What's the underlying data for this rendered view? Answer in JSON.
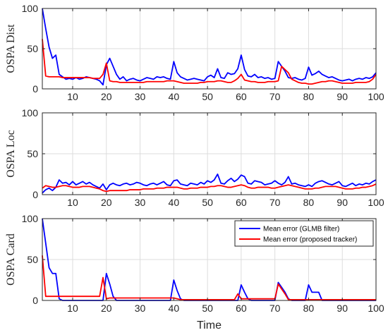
{
  "chart_data": [
    {
      "type": "line",
      "ylabel": "OSPA Dist",
      "xlabel": "",
      "xlim": [
        1,
        100
      ],
      "ylim": [
        0,
        100
      ],
      "xticks": [
        10,
        20,
        30,
        40,
        50,
        60,
        70,
        80,
        90,
        100
      ],
      "yticks": [
        0,
        50,
        100
      ],
      "grid": true,
      "series": [
        {
          "color": "#0000ff",
          "values": [
            100,
            75,
            52,
            38,
            42,
            18,
            15,
            12,
            13,
            12,
            14,
            12,
            13,
            15,
            14,
            13,
            12,
            10,
            5,
            30,
            38,
            28,
            18,
            12,
            15,
            10,
            12,
            13,
            11,
            10,
            12,
            14,
            13,
            12,
            15,
            14,
            15,
            13,
            12,
            34,
            20,
            15,
            13,
            11,
            12,
            13,
            12,
            11,
            10,
            15,
            17,
            14,
            25,
            14,
            13,
            20,
            18,
            19,
            25,
            42,
            24,
            16,
            15,
            18,
            14,
            15,
            13,
            14,
            12,
            13,
            34,
            28,
            22,
            14,
            13,
            14,
            12,
            11,
            13,
            27,
            17,
            19,
            22,
            18,
            16,
            14,
            15,
            13,
            11,
            10,
            11,
            12,
            10,
            12,
            13,
            12,
            14,
            13,
            15,
            20
          ]
        },
        {
          "color": "#ff0000",
          "values": [
            62,
            16,
            15,
            15,
            15,
            15,
            14,
            14,
            14,
            14,
            14,
            14,
            14,
            14,
            14,
            13,
            13,
            13,
            18,
            32,
            10,
            9,
            9,
            8,
            8,
            8,
            8,
            8,
            8,
            8,
            8,
            9,
            9,
            9,
            9,
            9,
            9,
            10,
            10,
            10,
            9,
            8,
            7,
            7,
            7,
            7,
            7,
            8,
            8,
            9,
            9,
            9,
            10,
            10,
            9,
            8,
            8,
            10,
            13,
            18,
            11,
            10,
            9,
            9,
            8,
            8,
            8,
            9,
            9,
            9,
            10,
            28,
            24,
            20,
            12,
            10,
            8,
            7,
            7,
            6,
            6,
            7,
            8,
            9,
            9,
            10,
            10,
            9,
            8,
            7,
            7,
            7,
            7,
            8,
            8,
            8,
            8,
            9,
            12,
            18
          ]
        }
      ]
    },
    {
      "type": "line",
      "ylabel": "OSPA Loc",
      "xlabel": "",
      "xlim": [
        1,
        100
      ],
      "ylim": [
        0,
        100
      ],
      "xticks": [
        10,
        20,
        30,
        40,
        50,
        60,
        70,
        80,
        90,
        100
      ],
      "yticks": [
        0,
        50,
        100
      ],
      "grid": true,
      "series": [
        {
          "color": "#0000ff",
          "values": [
            2,
            6,
            8,
            5,
            9,
            18,
            14,
            15,
            12,
            16,
            12,
            14,
            16,
            13,
            15,
            12,
            10,
            8,
            13,
            6,
            12,
            14,
            12,
            11,
            13,
            14,
            12,
            13,
            15,
            14,
            12,
            11,
            13,
            14,
            12,
            14,
            16,
            12,
            11,
            17,
            18,
            13,
            12,
            11,
            14,
            13,
            12,
            15,
            13,
            17,
            15,
            18,
            25,
            14,
            13,
            17,
            20,
            16,
            19,
            24,
            22,
            14,
            13,
            17,
            16,
            15,
            12,
            13,
            14,
            17,
            14,
            12,
            15,
            22,
            13,
            14,
            12,
            11,
            10,
            12,
            10,
            14,
            16,
            17,
            15,
            13,
            12,
            14,
            16,
            11,
            10,
            12,
            14,
            11,
            13,
            12,
            14,
            13,
            16,
            18
          ]
        },
        {
          "color": "#ff0000",
          "values": [
            8,
            11,
            10,
            9,
            9,
            10,
            11,
            11,
            10,
            9,
            9,
            9,
            10,
            10,
            10,
            9,
            8,
            7,
            5,
            4,
            5,
            5,
            5,
            5,
            5,
            5,
            6,
            6,
            6,
            6,
            7,
            7,
            7,
            7,
            8,
            8,
            8,
            9,
            9,
            9,
            9,
            8,
            7,
            7,
            8,
            8,
            8,
            9,
            9,
            9,
            10,
            10,
            11,
            11,
            10,
            9,
            9,
            10,
            11,
            12,
            11,
            9,
            8,
            8,
            9,
            9,
            9,
            9,
            8,
            8,
            9,
            10,
            11,
            12,
            11,
            10,
            9,
            8,
            7,
            7,
            7,
            8,
            8,
            9,
            10,
            10,
            10,
            10,
            9,
            8,
            7,
            7,
            7,
            8,
            8,
            9,
            9,
            10,
            11,
            13
          ]
        }
      ]
    },
    {
      "type": "line",
      "ylabel": "OSPA Card",
      "xlabel": "Time",
      "xlim": [
        1,
        100
      ],
      "ylim": [
        0,
        100
      ],
      "xticks": [
        10,
        20,
        30,
        40,
        50,
        60,
        70,
        80,
        90,
        100
      ],
      "yticks": [
        0,
        50,
        100
      ],
      "grid": true,
      "legend_position": "top-right",
      "series": [
        {
          "name": "Mean error (GLMB filter)",
          "color": "#0000ff",
          "values": [
            100,
            70,
            40,
            33,
            33,
            2,
            0,
            0,
            0,
            0,
            0,
            0,
            0,
            0,
            0,
            0,
            0,
            0,
            0,
            33,
            20,
            5,
            0,
            0,
            0,
            0,
            0,
            0,
            0,
            0,
            0,
            0,
            0,
            0,
            0,
            0,
            0,
            0,
            0,
            25,
            12,
            2,
            0,
            0,
            0,
            0,
            0,
            0,
            0,
            0,
            0,
            0,
            0,
            0,
            0,
            0,
            0,
            0,
            0,
            19,
            10,
            2,
            0,
            0,
            0,
            0,
            0,
            0,
            0,
            0,
            22,
            16,
            10,
            2,
            0,
            0,
            0,
            0,
            0,
            19,
            10,
            10,
            10,
            0,
            0,
            0,
            0,
            0,
            0,
            0,
            0,
            0,
            0,
            0,
            0,
            0,
            0,
            0,
            0,
            0
          ]
        },
        {
          "name": "Mean error (proposed tracker)",
          "color": "#ff0000",
          "values": [
            55,
            5,
            5,
            5,
            5,
            5,
            5,
            5,
            5,
            5,
            5,
            5,
            5,
            5,
            5,
            5,
            5,
            5,
            28,
            2,
            3,
            3,
            3,
            3,
            3,
            3,
            3,
            3,
            3,
            3,
            3,
            3,
            3,
            3,
            3,
            3,
            3,
            3,
            3,
            3,
            2,
            1,
            1,
            1,
            1,
            1,
            1,
            1,
            1,
            1,
            1,
            1,
            1,
            1,
            1,
            1,
            1,
            1,
            8,
            2,
            2,
            2,
            2,
            2,
            2,
            2,
            2,
            2,
            2,
            2,
            20,
            14,
            8,
            1,
            1,
            1,
            1,
            1,
            1,
            1,
            1,
            1,
            1,
            1,
            1,
            1,
            1,
            1,
            1,
            1,
            1,
            1,
            1,
            1,
            1,
            1,
            1,
            1,
            1,
            1
          ]
        }
      ]
    }
  ]
}
